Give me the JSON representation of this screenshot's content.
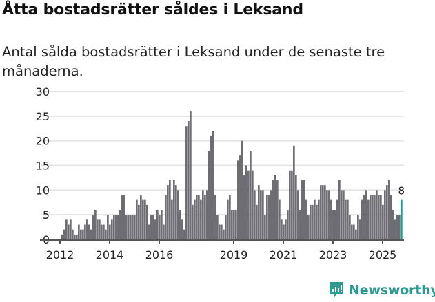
{
  "title": "Åtta bostadsrätter såldes i Leksand",
  "subtitle": "Antal sålda bostadsrätter i Leksand under de senaste tre månaderna.",
  "brand": {
    "name": "Newsworthy",
    "color": "#2e9a92"
  },
  "colors": {
    "bar": "#6e6d73",
    "highlight": "#1a9e96",
    "grid": "#e3e3e3"
  },
  "chart_data": {
    "type": "bar",
    "title": "Åtta bostadsrätter såldes i Leksand",
    "xlabel": "",
    "ylabel": "",
    "ylim": [
      0,
      30
    ],
    "yticks": [
      0,
      5,
      10,
      15,
      20,
      25,
      30
    ],
    "start_month": "2011-05",
    "end_month": "2025-10",
    "xticks": [
      {
        "label": "2012",
        "month_index": 8
      },
      {
        "label": "2014",
        "month_index": 32
      },
      {
        "label": "2016",
        "month_index": 56
      },
      {
        "label": "2019",
        "month_index": 92
      },
      {
        "label": "2021",
        "month_index": 116
      },
      {
        "label": "2023",
        "month_index": 140
      },
      {
        "label": "2025",
        "month_index": 164
      }
    ],
    "values": [
      0,
      0,
      0,
      0,
      0,
      0,
      0,
      0,
      0,
      1,
      2,
      4,
      3,
      4,
      2,
      1,
      1,
      3,
      2,
      2,
      3,
      4,
      3,
      2,
      5,
      6,
      4,
      4,
      3,
      3,
      2,
      5,
      3,
      4,
      5,
      5,
      5,
      6,
      9,
      9,
      5,
      5,
      5,
      5,
      5,
      8,
      7,
      9,
      8,
      8,
      7,
      3,
      5,
      5,
      4,
      6,
      5,
      6,
      3,
      9,
      11,
      12,
      8,
      12,
      11,
      10,
      6,
      4,
      2,
      23,
      24,
      26,
      7,
      8,
      9,
      9,
      8,
      10,
      9,
      10,
      18,
      21,
      22,
      9,
      5,
      3,
      3,
      2,
      5,
      8,
      9,
      6,
      6,
      6,
      16,
      17,
      20,
      13,
      15,
      14,
      18,
      14,
      10,
      7,
      11,
      10,
      10,
      5,
      9,
      9,
      10,
      12,
      13,
      12,
      8,
      4,
      3,
      4,
      6,
      14,
      14,
      19,
      13,
      10,
      6,
      12,
      12,
      8,
      5,
      7,
      7,
      8,
      7,
      8,
      11,
      11,
      11,
      10,
      10,
      8,
      6,
      6,
      8,
      12,
      10,
      10,
      8,
      8,
      5,
      3,
      3,
      2,
      5,
      4,
      8,
      9,
      10,
      8,
      9,
      9,
      9,
      10,
      9,
      9,
      7,
      10,
      11,
      12,
      9,
      6,
      4,
      5,
      5,
      8
    ],
    "highlight_last": true,
    "last_label": "8"
  }
}
